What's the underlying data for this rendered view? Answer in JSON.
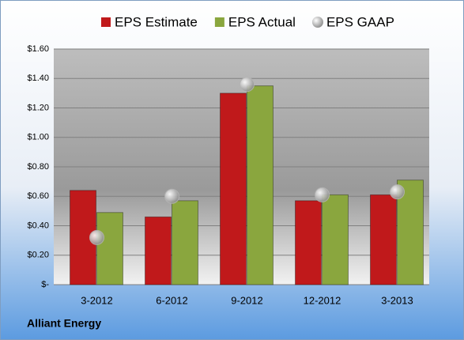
{
  "chart_data": {
    "type": "bar",
    "categories": [
      "3-2012",
      "6-2012",
      "9-2012",
      "12-2012",
      "3-2013"
    ],
    "series": [
      {
        "name": "EPS Estimate",
        "type": "bar",
        "color": "#c0191b",
        "values": [
          0.64,
          0.46,
          1.3,
          0.57,
          0.61
        ]
      },
      {
        "name": "EPS Actual",
        "type": "bar",
        "color": "#8aa63e",
        "values": [
          0.49,
          0.57,
          1.35,
          0.61,
          0.71
        ]
      },
      {
        "name": "EPS GAAP",
        "type": "scatter",
        "color": "#b4b4b4",
        "values": [
          0.32,
          0.6,
          1.36,
          0.61,
          0.63
        ]
      }
    ],
    "ylim": [
      0,
      1.6
    ],
    "yticks": [
      {
        "value": 0,
        "label": "$-"
      },
      {
        "value": 0.2,
        "label": "$0.20"
      },
      {
        "value": 0.4,
        "label": "$0.40"
      },
      {
        "value": 0.6,
        "label": "$0.60"
      },
      {
        "value": 0.8,
        "label": "$0.80"
      },
      {
        "value": 1.0,
        "label": "$1.00"
      },
      {
        "value": 1.2,
        "label": "$1.20"
      },
      {
        "value": 1.4,
        "label": "$1.40"
      },
      {
        "value": 1.6,
        "label": "$1.60"
      }
    ],
    "grid": true,
    "legend": "top",
    "footer": "Alliant Energy"
  }
}
